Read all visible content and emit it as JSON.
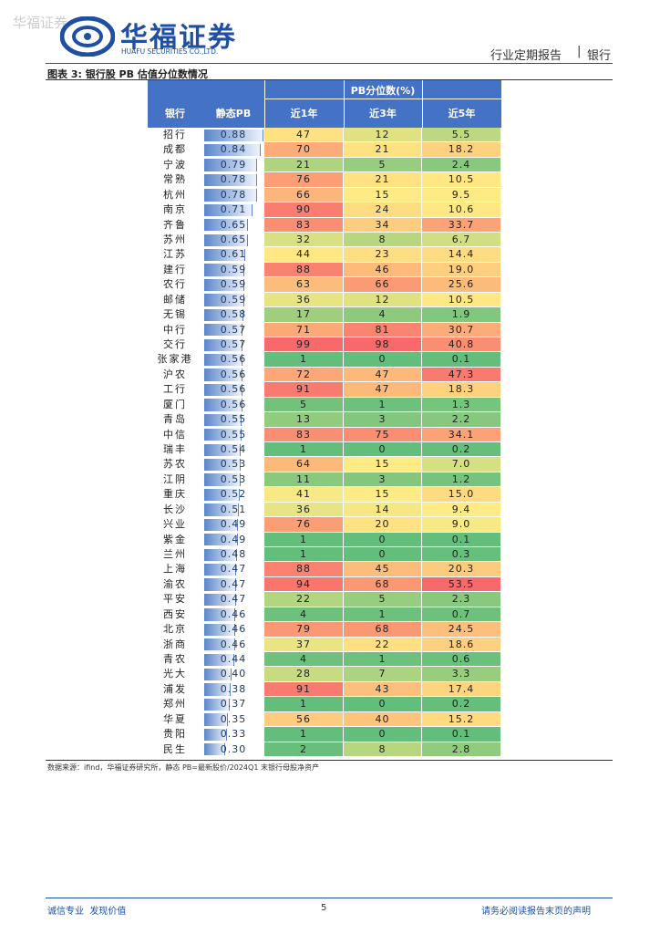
{
  "watermark": "华福证券",
  "header": {
    "logo_cn": "华福证券",
    "logo_en": "HUAFU SECURITIES CO.,LTD.",
    "report_type": "行业定期报告",
    "separator": "|",
    "sector": "银行"
  },
  "caption": "图表 3: 银行股 PB 估值分位数情况",
  "table": {
    "group_header": "PB分位数(%)",
    "columns": [
      "银行",
      "静态PB",
      "近1年",
      "近3年",
      "近5年"
    ],
    "rows": [
      [
        "招行",
        "0.88",
        "47",
        "12",
        "5.5"
      ],
      [
        "成都",
        "0.84",
        "70",
        "21",
        "18.2"
      ],
      [
        "宁波",
        "0.79",
        "21",
        "5",
        "2.4"
      ],
      [
        "常熟",
        "0.78",
        "76",
        "21",
        "10.5"
      ],
      [
        "杭州",
        "0.78",
        "66",
        "15",
        "9.5"
      ],
      [
        "南京",
        "0.71",
        "90",
        "24",
        "10.6"
      ],
      [
        "齐鲁",
        "0.65",
        "83",
        "34",
        "33.7"
      ],
      [
        "苏州",
        "0.65",
        "32",
        "8",
        "6.7"
      ],
      [
        "江苏",
        "0.61",
        "44",
        "23",
        "14.4"
      ],
      [
        "建行",
        "0.59",
        "88",
        "46",
        "19.0"
      ],
      [
        "农行",
        "0.59",
        "63",
        "66",
        "25.6"
      ],
      [
        "邮储",
        "0.59",
        "36",
        "12",
        "10.5"
      ],
      [
        "无锡",
        "0.58",
        "17",
        "4",
        "1.9"
      ],
      [
        "中行",
        "0.57",
        "71",
        "81",
        "30.7"
      ],
      [
        "交行",
        "0.57",
        "99",
        "98",
        "40.8"
      ],
      [
        "张家港",
        "0.56",
        "1",
        "0",
        "0.1"
      ],
      [
        "沪农",
        "0.56",
        "72",
        "47",
        "47.3"
      ],
      [
        "工行",
        "0.56",
        "91",
        "47",
        "18.3"
      ],
      [
        "厦门",
        "0.56",
        "5",
        "1",
        "1.3"
      ],
      [
        "青岛",
        "0.55",
        "13",
        "3",
        "2.2"
      ],
      [
        "中信",
        "0.55",
        "83",
        "75",
        "34.1"
      ],
      [
        "瑞丰",
        "0.54",
        "1",
        "0",
        "0.2"
      ],
      [
        "苏农",
        "0.53",
        "64",
        "15",
        "7.0"
      ],
      [
        "江阴",
        "0.53",
        "11",
        "3",
        "1.2"
      ],
      [
        "重庆",
        "0.52",
        "41",
        "15",
        "15.0"
      ],
      [
        "长沙",
        "0.51",
        "36",
        "14",
        "9.4"
      ],
      [
        "兴业",
        "0.49",
        "76",
        "20",
        "9.0"
      ],
      [
        "紫金",
        "0.49",
        "1",
        "0",
        "0.1"
      ],
      [
        "兰州",
        "0.48",
        "1",
        "0",
        "0.3"
      ],
      [
        "上海",
        "0.47",
        "88",
        "45",
        "20.3"
      ],
      [
        "渝农",
        "0.47",
        "94",
        "68",
        "53.5"
      ],
      [
        "平安",
        "0.47",
        "22",
        "5",
        "2.3"
      ],
      [
        "西安",
        "0.46",
        "4",
        "1",
        "0.7"
      ],
      [
        "北京",
        "0.46",
        "79",
        "68",
        "24.5"
      ],
      [
        "浙商",
        "0.46",
        "37",
        "22",
        "18.6"
      ],
      [
        "青农",
        "0.44",
        "4",
        "1",
        "0.6"
      ],
      [
        "光大",
        "0.40",
        "28",
        "7",
        "3.3"
      ],
      [
        "浦发",
        "0.38",
        "91",
        "43",
        "17.4"
      ],
      [
        "郑州",
        "0.37",
        "1",
        "0",
        "0.2"
      ],
      [
        "华夏",
        "0.35",
        "56",
        "40",
        "15.2"
      ],
      [
        "贵阳",
        "0.33",
        "1",
        "0",
        "0.1"
      ],
      [
        "民生",
        "0.30",
        "2",
        "8",
        "2.8"
      ]
    ]
  },
  "source": "数据来源：ifind，华福证券研究所，静态 PB=最新股价/2024Q1 末银行母股净资产",
  "footer": {
    "left": "诚信专业  发现价值",
    "page": "5",
    "right": "请务必阅读报告末页的声明"
  }
}
